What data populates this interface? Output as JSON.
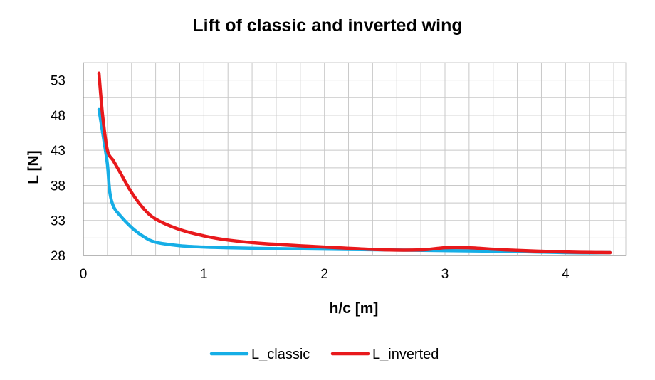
{
  "chart_data": {
    "type": "line",
    "title": "Lift of classic and inverted wing",
    "xlabel": "h/c [m]",
    "ylabel": "L [N]",
    "xlim": [
      0,
      4.5
    ],
    "ylim": [
      28,
      55.5
    ],
    "x_ticks": [
      0,
      1,
      2,
      3,
      4
    ],
    "x_tick_labels": [
      "0",
      "1",
      "2",
      "3",
      "4"
    ],
    "y_ticks": [
      28,
      33,
      38,
      43,
      48,
      53
    ],
    "y_tick_labels": [
      "28",
      "33",
      "38",
      "43",
      "48",
      "53"
    ],
    "grid": true,
    "legend_position": "bottom",
    "series": [
      {
        "name": "L_classic",
        "color": "#16aee6",
        "x": [
          0.13,
          0.17,
          0.2,
          0.22,
          0.25,
          0.3,
          0.4,
          0.5,
          0.6,
          0.8,
          1.0,
          1.2,
          1.5,
          2.0,
          2.5,
          3.0,
          3.5,
          4.0,
          4.37
        ],
        "y": [
          48.8,
          44.5,
          41.0,
          37.0,
          35.0,
          33.8,
          32.0,
          30.7,
          29.9,
          29.4,
          29.2,
          29.1,
          29.0,
          28.9,
          28.8,
          28.7,
          28.6,
          28.4,
          28.4
        ]
      },
      {
        "name": "L_inverted",
        "color": "#e8191c",
        "x": [
          0.13,
          0.16,
          0.2,
          0.25,
          0.3,
          0.4,
          0.5,
          0.6,
          0.8,
          1.0,
          1.2,
          1.5,
          2.0,
          2.5,
          2.8,
          3.0,
          3.2,
          3.5,
          4.0,
          4.37
        ],
        "y": [
          54.0,
          48.0,
          43.0,
          41.5,
          40.0,
          37.0,
          34.7,
          33.2,
          31.7,
          30.8,
          30.2,
          29.7,
          29.2,
          28.8,
          28.8,
          29.1,
          29.1,
          28.8,
          28.5,
          28.4
        ]
      }
    ]
  }
}
